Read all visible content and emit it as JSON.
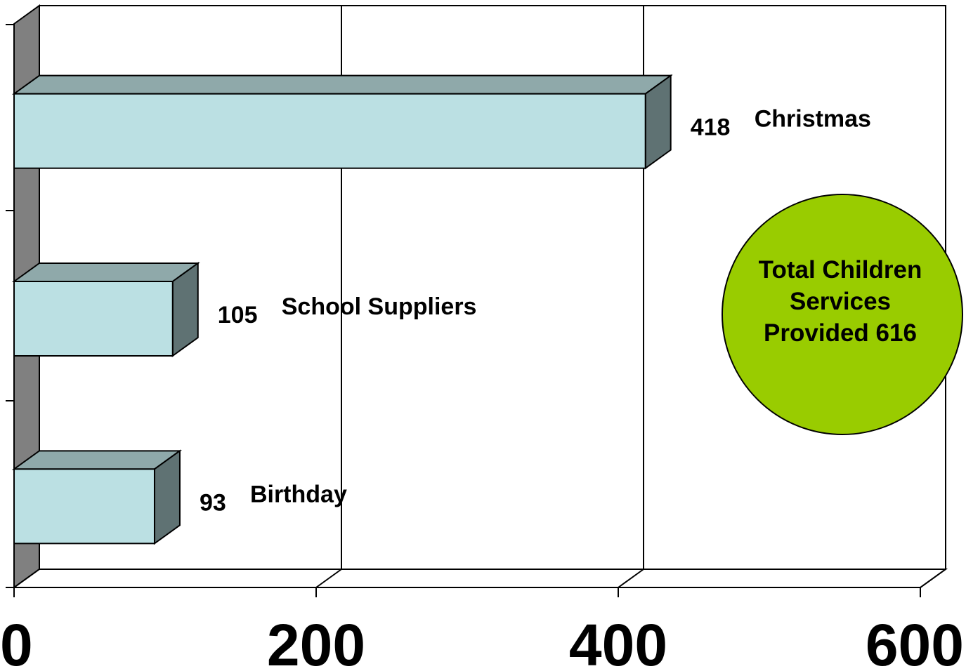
{
  "chart_data": {
    "type": "bar",
    "orientation": "horizontal",
    "style": "3d",
    "categories": [
      "Birthday",
      "School Suppliers",
      "Christmas"
    ],
    "values": [
      93,
      105,
      418
    ],
    "value_labels": [
      "93",
      "105",
      "418"
    ],
    "xlim": [
      0,
      600
    ],
    "x_ticks": [
      0,
      200,
      400,
      600
    ],
    "x_tick_labels": [
      "0",
      "200",
      "400",
      "600"
    ],
    "grid": true,
    "legend": "none",
    "title": "",
    "xlabel": "",
    "ylabel": "",
    "callout": {
      "lines": [
        "Total Children",
        "Services",
        "Provided 616"
      ],
      "fill_color": "#99cc00"
    },
    "colors": {
      "bar_front": "#bbe0e3",
      "bar_top": "#8fa9aa",
      "bar_side": "#5f7273",
      "left_wall": "#808080",
      "gridline": "#000000"
    }
  }
}
